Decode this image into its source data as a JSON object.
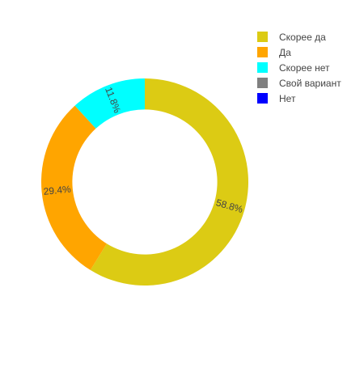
{
  "chart_data": {
    "type": "pie",
    "hole": 0.7,
    "slices": [
      {
        "label": "Скорее да",
        "value": 58.8,
        "text": "58.8%",
        "color": "#dccb14"
      },
      {
        "label": "Да",
        "value": 29.4,
        "text": "29.4%",
        "color": "#ffa500"
      },
      {
        "label": "Скорее нет",
        "value": 11.8,
        "text": "11.8%",
        "color": "#00ffff"
      },
      {
        "label": "Свой вариант",
        "value": 0,
        "text": "",
        "color": "#808080"
      },
      {
        "label": "Нет",
        "value": 0,
        "text": "",
        "color": "#0000ff"
      }
    ],
    "legend_position": "top-right",
    "direction": "clockwise",
    "start": "top"
  }
}
